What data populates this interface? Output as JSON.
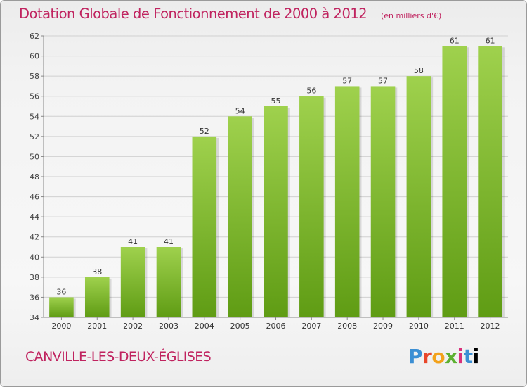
{
  "header": {
    "title": "Dotation Globale de Fonctionnement de 2000 à 2012",
    "unit": "(en milliers d'€)"
  },
  "footer": {
    "city": "CANVILLE-LES-DEUX-ÉGLISES",
    "logo": "Proxiti"
  },
  "colors": {
    "accent": "#c0235f",
    "bar_light": "#9fd14d",
    "bar_dark": "#5f9c14",
    "grid": "#d0d0d0"
  },
  "chart_data": {
    "type": "bar",
    "title": "Dotation Globale de Fonctionnement de 2000 à 2012",
    "subtitle": "(en milliers d'€)",
    "xlabel": "",
    "ylabel": "",
    "categories": [
      "2000",
      "2001",
      "2002",
      "2003",
      "2004",
      "2005",
      "2006",
      "2007",
      "2008",
      "2009",
      "2010",
      "2011",
      "2012"
    ],
    "values": [
      36,
      38,
      41,
      41,
      52,
      54,
      55,
      56,
      57,
      57,
      58,
      61,
      61
    ],
    "ylim": [
      34,
      62
    ],
    "yticks": [
      34,
      36,
      38,
      40,
      42,
      44,
      46,
      48,
      50,
      52,
      54,
      56,
      58,
      60,
      62
    ],
    "grid": true,
    "data_labels": true
  }
}
